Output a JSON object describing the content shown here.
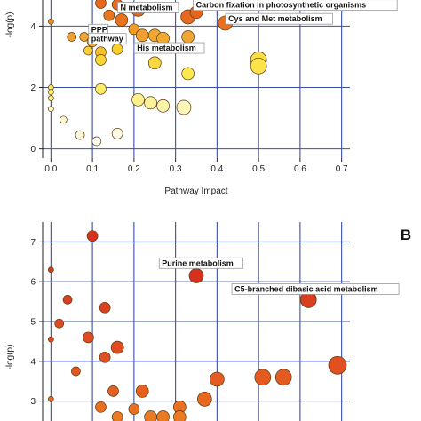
{
  "chart_data": [
    {
      "type": "scatter",
      "panel_label": "",
      "xlabel": "Pathway Impact",
      "ylabel": "-log(p)",
      "xlim": [
        -0.02,
        0.72
      ],
      "ylim": [
        -0.3,
        4.85
      ],
      "x_ticks": [
        "0.0",
        "0.1",
        "0.2",
        "0.3",
        "0.4",
        "0.5",
        "0.6",
        "0.7"
      ],
      "y_ticks": [
        "0",
        "2",
        "4"
      ],
      "grid": true,
      "points": [
        {
          "x": 0.0,
          "y": 4.15,
          "size": 3,
          "color": "#e8901f"
        },
        {
          "x": 0.12,
          "y": 4.75,
          "size": 6,
          "color": "#e8651f"
        },
        {
          "x": 0.16,
          "y": 4.7,
          "size": 6,
          "color": "#e86a1f"
        },
        {
          "x": 0.17,
          "y": 4.2,
          "size": 7,
          "color": "#e8731f"
        },
        {
          "x": 0.14,
          "y": 4.35,
          "size": 6,
          "color": "#e8751f"
        },
        {
          "x": 0.21,
          "y": 4.55,
          "size": 8,
          "color": "#e8661f"
        },
        {
          "x": 0.33,
          "y": 4.3,
          "size": 8,
          "color": "#e8681f"
        },
        {
          "x": 0.42,
          "y": 4.1,
          "size": 8,
          "color": "#e8701f"
        },
        {
          "x": 0.35,
          "y": 4.45,
          "size": 7,
          "color": "#e8641f"
        },
        {
          "x": 0.2,
          "y": 3.9,
          "size": 6,
          "color": "#f09a28"
        },
        {
          "x": 0.22,
          "y": 3.7,
          "size": 7,
          "color": "#f0a030"
        },
        {
          "x": 0.25,
          "y": 3.7,
          "size": 7,
          "color": "#f0a830"
        },
        {
          "x": 0.27,
          "y": 3.6,
          "size": 7,
          "color": "#f0a830"
        },
        {
          "x": 0.33,
          "y": 3.65,
          "size": 7,
          "color": "#f0a530"
        },
        {
          "x": 0.05,
          "y": 3.65,
          "size": 5,
          "color": "#f0a030"
        },
        {
          "x": 0.08,
          "y": 3.65,
          "size": 5,
          "color": "#f0a535"
        },
        {
          "x": 0.1,
          "y": 3.5,
          "size": 6,
          "color": "#f5b030"
        },
        {
          "x": 0.12,
          "y": 3.15,
          "size": 6,
          "color": "#f5c030"
        },
        {
          "x": 0.09,
          "y": 3.2,
          "size": 5,
          "color": "#f8d030"
        },
        {
          "x": 0.16,
          "y": 3.25,
          "size": 6,
          "color": "#f8cf30"
        },
        {
          "x": 0.12,
          "y": 2.9,
          "size": 6,
          "color": "#f8d535"
        },
        {
          "x": 0.25,
          "y": 2.8,
          "size": 7,
          "color": "#fad840"
        },
        {
          "x": 0.5,
          "y": 2.9,
          "size": 9,
          "color": "#fadf40"
        },
        {
          "x": 0.5,
          "y": 2.7,
          "size": 9,
          "color": "#fbe448"
        },
        {
          "x": 0.33,
          "y": 2.45,
          "size": 7,
          "color": "#fbe850"
        },
        {
          "x": 0.0,
          "y": 2.0,
          "size": 3,
          "color": "#fbec60"
        },
        {
          "x": 0.0,
          "y": 1.85,
          "size": 3,
          "color": "#fcef70"
        },
        {
          "x": 0.0,
          "y": 1.65,
          "size": 3,
          "color": "#fcef78"
        },
        {
          "x": 0.12,
          "y": 1.95,
          "size": 6,
          "color": "#fbee66"
        },
        {
          "x": 0.21,
          "y": 1.6,
          "size": 7,
          "color": "#fcf08a"
        },
        {
          "x": 0.24,
          "y": 1.5,
          "size": 7,
          "color": "#fcf29a"
        },
        {
          "x": 0.27,
          "y": 1.4,
          "size": 7,
          "color": "#fcf4aa"
        },
        {
          "x": 0.32,
          "y": 1.35,
          "size": 8,
          "color": "#fdf6b8"
        },
        {
          "x": 0.0,
          "y": 1.3,
          "size": 3,
          "color": "#fdf7c5"
        },
        {
          "x": 0.03,
          "y": 0.95,
          "size": 4,
          "color": "#fdf8d0"
        },
        {
          "x": 0.07,
          "y": 0.45,
          "size": 5,
          "color": "#fefae0"
        },
        {
          "x": 0.11,
          "y": 0.25,
          "size": 5,
          "color": "#fffdf2"
        },
        {
          "x": 0.16,
          "y": 0.5,
          "size": 6,
          "color": "#fefbe5"
        }
      ],
      "annotations": [
        {
          "text": "N metabolism",
          "x": 0.165,
          "y": 4.52
        },
        {
          "text": "Carbon fixation in photosynthetic organisms",
          "x": 0.347,
          "y": 4.6
        },
        {
          "text": "Cys and Met metabolism",
          "x": 0.425,
          "y": 4.15
        },
        {
          "text": "PPP",
          "x": 0.095,
          "y": 3.8
        },
        {
          "text": "pathway",
          "x": 0.095,
          "y": 3.5
        },
        {
          "text": "His metabolism",
          "x": 0.205,
          "y": 3.2
        }
      ]
    },
    {
      "type": "scatter",
      "panel_label": "B",
      "xlabel": "",
      "ylabel": "-log(p)",
      "xlim": [
        -0.02,
        0.72
      ],
      "ylim": [
        2.5,
        7.5
      ],
      "x_ticks": [],
      "y_ticks": [
        "3",
        "4",
        "5",
        "6",
        "7"
      ],
      "grid": true,
      "points": [
        {
          "x": 0.1,
          "y": 7.15,
          "size": 6,
          "color": "#d8321f"
        },
        {
          "x": 0.0,
          "y": 6.3,
          "size": 3,
          "color": "#d8361f"
        },
        {
          "x": 0.35,
          "y": 6.15,
          "size": 8,
          "color": "#d8301f"
        },
        {
          "x": 0.62,
          "y": 5.55,
          "size": 9,
          "color": "#d8401f"
        },
        {
          "x": 0.04,
          "y": 5.55,
          "size": 5,
          "color": "#d8401f"
        },
        {
          "x": 0.13,
          "y": 5.35,
          "size": 6,
          "color": "#dc4020"
        },
        {
          "x": 0.02,
          "y": 4.95,
          "size": 5,
          "color": "#e04a20"
        },
        {
          "x": 0.0,
          "y": 4.55,
          "size": 3,
          "color": "#e04a20"
        },
        {
          "x": 0.09,
          "y": 4.6,
          "size": 6,
          "color": "#e04c20"
        },
        {
          "x": 0.16,
          "y": 4.35,
          "size": 7,
          "color": "#e04c20"
        },
        {
          "x": 0.13,
          "y": 4.1,
          "size": 6,
          "color": "#e05020"
        },
        {
          "x": 0.69,
          "y": 3.9,
          "size": 10,
          "color": "#e05020"
        },
        {
          "x": 0.06,
          "y": 3.75,
          "size": 5,
          "color": "#e45820"
        },
        {
          "x": 0.51,
          "y": 3.6,
          "size": 9,
          "color": "#e45a20"
        },
        {
          "x": 0.56,
          "y": 3.6,
          "size": 9,
          "color": "#e45a20"
        },
        {
          "x": 0.4,
          "y": 3.55,
          "size": 8,
          "color": "#e45c20"
        },
        {
          "x": 0.15,
          "y": 3.25,
          "size": 6,
          "color": "#e86020"
        },
        {
          "x": 0.22,
          "y": 3.25,
          "size": 7,
          "color": "#e86020"
        },
        {
          "x": 0.37,
          "y": 3.05,
          "size": 8,
          "color": "#e86620"
        },
        {
          "x": 0.0,
          "y": 3.05,
          "size": 3,
          "color": "#e86620"
        },
        {
          "x": 0.12,
          "y": 2.85,
          "size": 6,
          "color": "#ea7020"
        },
        {
          "x": 0.2,
          "y": 2.8,
          "size": 6,
          "color": "#ea7020"
        },
        {
          "x": 0.31,
          "y": 2.85,
          "size": 7,
          "color": "#ea7020"
        },
        {
          "x": 0.16,
          "y": 2.6,
          "size": 6,
          "color": "#ec7a22"
        },
        {
          "x": 0.24,
          "y": 2.6,
          "size": 7,
          "color": "#ec7a22"
        },
        {
          "x": 0.27,
          "y": 2.6,
          "size": 7,
          "color": "#ec7a22"
        },
        {
          "x": 0.31,
          "y": 2.6,
          "size": 7,
          "color": "#ec7a22"
        }
      ],
      "annotations": [
        {
          "text": "Purine metabolism",
          "x": 0.265,
          "y": 6.4
        },
        {
          "text": "C5-branched dibasic acid metabolism",
          "x": 0.44,
          "y": 5.75
        }
      ]
    }
  ]
}
